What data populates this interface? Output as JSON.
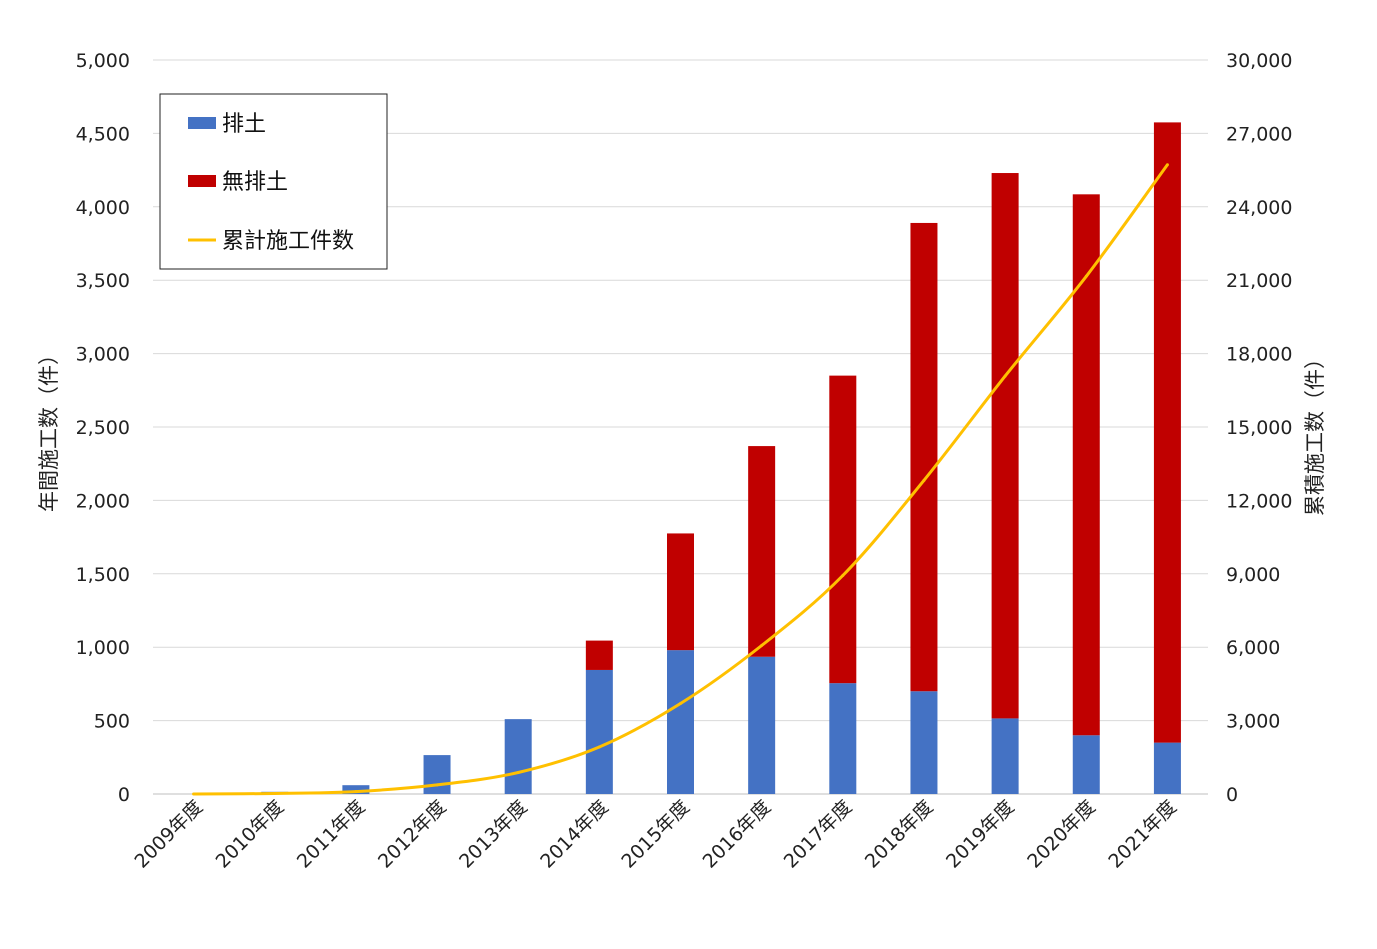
{
  "chart_data": {
    "type": "bar",
    "stacked": true,
    "categories": [
      "2009年度",
      "2010年度",
      "2011年度",
      "2012年度",
      "2013年度",
      "2014年度",
      "2015年度",
      "2016年度",
      "2017年度",
      "2018年度",
      "2019年度",
      "2020年度",
      "2021年度"
    ],
    "series": [
      {
        "name": "排土",
        "type": "bar",
        "axis": "left",
        "color": "#4472C4",
        "values": [
          0,
          15,
          60,
          265,
          510,
          845,
          980,
          935,
          755,
          700,
          515,
          400,
          350
        ]
      },
      {
        "name": "無排土",
        "type": "bar",
        "axis": "left",
        "color": "#C00000",
        "values": [
          0,
          0,
          0,
          0,
          0,
          200,
          795,
          1435,
          2095,
          3190,
          3715,
          3685,
          4225
        ]
      },
      {
        "name": "累計施工件数",
        "type": "line",
        "axis": "right",
        "color": "#FFC000",
        "values": [
          0,
          20,
          100,
          370,
          880,
          1920,
          3700,
          6070,
          8930,
          12820,
          17080,
          21160,
          25720
        ]
      }
    ],
    "ylabel": "年間施工数（件）",
    "y2label": "累積施工数（件）",
    "ylim": [
      0,
      5000
    ],
    "y2lim": [
      0,
      30000
    ],
    "yticks": [
      "0",
      "500",
      "1,000",
      "1,500",
      "2,000",
      "2,500",
      "3,000",
      "3,500",
      "4,000",
      "4,500",
      "5,000"
    ],
    "y2ticks": [
      "0",
      "3,000",
      "6,000",
      "9,000",
      "12,000",
      "15,000",
      "18,000",
      "21,000",
      "24,000",
      "27,000",
      "30,000"
    ],
    "grid": true,
    "legend_position": "top-left"
  }
}
